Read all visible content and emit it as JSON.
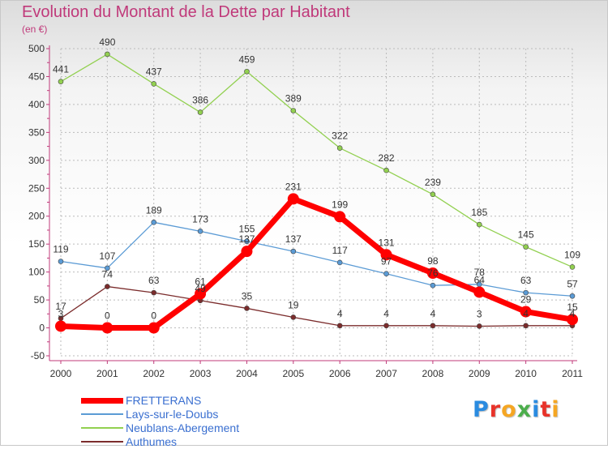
{
  "title": "Evolution du Montant de la Dette par Habitant",
  "subtitle": "(en €)",
  "logo": {
    "text": "Proxiti",
    "colors": [
      "#2a8be0",
      "#e8332a",
      "#f5a623",
      "#4cae4c",
      "#2a8be0",
      "#e8332a",
      "#f5a623"
    ]
  },
  "colors": {
    "background_top": "#dcdcdc",
    "axis": "#c0397a",
    "tick_text": "#333333",
    "grid": "#bbbbbb",
    "data_label": "#333333"
  },
  "chart_data": {
    "type": "line",
    "title": "Evolution du Montant de la Dette par Habitant",
    "subtitle": "(en €)",
    "x": [
      "2000",
      "2001",
      "2002",
      "2003",
      "2004",
      "2005",
      "2006",
      "2007",
      "2008",
      "2009",
      "2010",
      "2011"
    ],
    "ylim": [
      -50,
      500
    ],
    "yticks": [
      -50,
      0,
      50,
      100,
      150,
      200,
      250,
      300,
      350,
      400,
      450,
      500
    ],
    "grid": true,
    "legend_position": "bottom-left",
    "series": [
      {
        "name": "FRETTERANS",
        "color": "#ff0000",
        "width": 7,
        "marker": 7,
        "values": [
          3,
          0,
          0,
          61,
          137,
          231,
          199,
          131,
          98,
          64,
          29,
          15
        ],
        "labels": [
          "3",
          "0",
          "0",
          "61",
          "137",
          "231",
          "199",
          "131",
          "98",
          "64",
          "29",
          "15"
        ]
      },
      {
        "name": "Lays-sur-le-Doubs",
        "color": "#5b9bd5",
        "width": 1.3,
        "marker": 3,
        "values": [
          119,
          107,
          189,
          173,
          155,
          137,
          117,
          97,
          76,
          78,
          63,
          57
        ],
        "labels": [
          "119",
          "107",
          "189",
          "173",
          "155",
          "137",
          "117",
          "97",
          "76",
          "78",
          "63",
          "57"
        ]
      },
      {
        "name": "Neublans-Abergement",
        "color": "#92d050",
        "width": 1.3,
        "marker": 3,
        "values": [
          441,
          490,
          437,
          386,
          459,
          389,
          322,
          282,
          239,
          185,
          145,
          109
        ],
        "labels": [
          "441",
          "490",
          "437",
          "386",
          "459",
          "389",
          "322",
          "282",
          "239",
          "185",
          "145",
          "109"
        ]
      },
      {
        "name": "Authumes",
        "color": "#7b2c2c",
        "width": 1.3,
        "marker": 3,
        "values": [
          17,
          74,
          63,
          49,
          35,
          19,
          4,
          4,
          4,
          3,
          4,
          4
        ],
        "labels": [
          "17",
          "74",
          "63",
          "49",
          "35",
          "19",
          "4",
          "4",
          "4",
          "3",
          "4",
          "4"
        ]
      }
    ]
  }
}
